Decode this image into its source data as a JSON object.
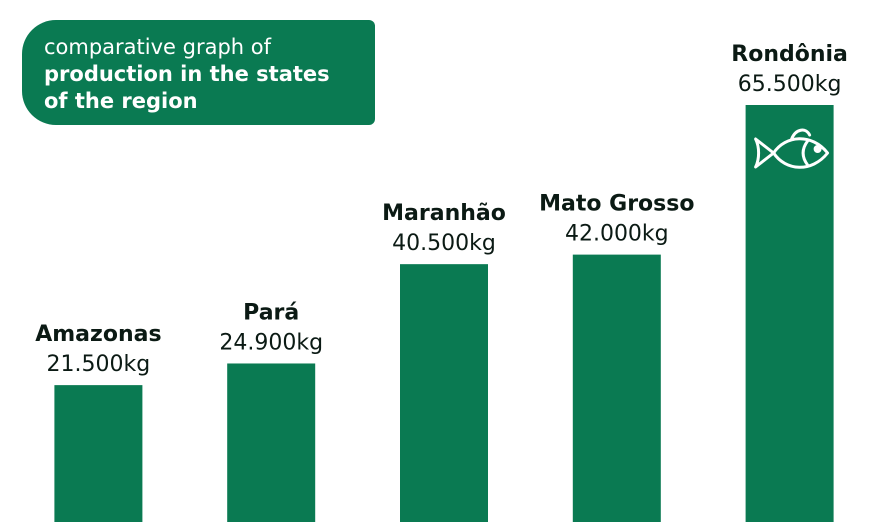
{
  "chart_data": {
    "type": "bar",
    "title_parts": [
      "comparative graph of",
      "production in the states of the region"
    ],
    "categories": [
      "Amazonas",
      "Pará",
      "Maranhão",
      "Mato Grosso",
      "Rondônia"
    ],
    "values": [
      21500,
      24900,
      40500,
      42000,
      65500
    ],
    "value_labels": [
      "21.500kg",
      "24.900kg",
      "40.500kg",
      "42.000kg",
      "65.500kg"
    ],
    "color": "#0a7a52"
  }
}
